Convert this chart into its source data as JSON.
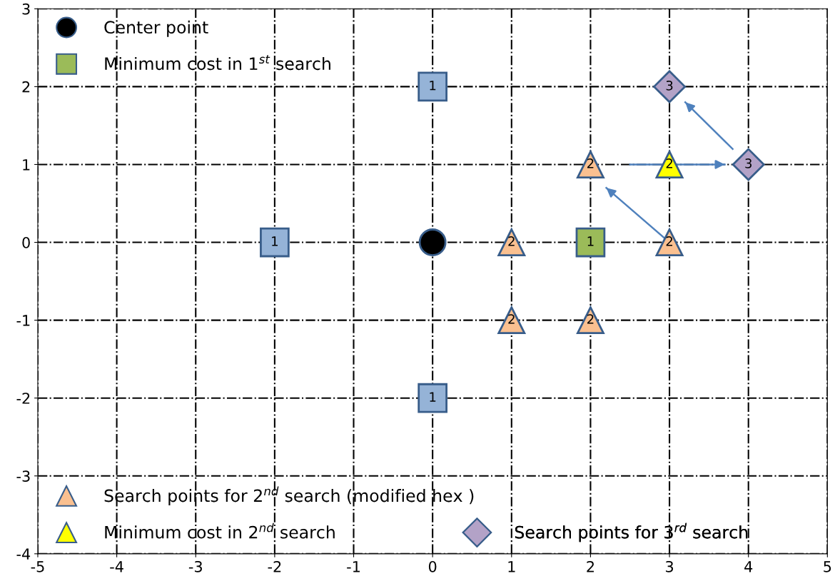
{
  "chart_data": {
    "type": "scatter",
    "xlim": [
      -5,
      5
    ],
    "ylim": [
      -4,
      3
    ],
    "xticks": [
      -5,
      -4,
      -3,
      -2,
      -1,
      0,
      1,
      2,
      3,
      4,
      5
    ],
    "yticks": [
      -4,
      -3,
      -2,
      -1,
      0,
      1,
      2,
      3
    ],
    "grid": true,
    "legend": "left",
    "series": [
      {
        "name": "Center point",
        "color": "#000000",
        "marker": "circle",
        "x": [
          0
        ],
        "values": [
          0
        ]
      },
      {
        "color": "#95b3d7",
        "marker": "square",
        "x": [
          0,
          -2,
          0
        ],
        "values": [
          2,
          0,
          -2
        ]
      },
      {
        "name": "Minimum cost in 1$^{st}$ search",
        "color": "#9bbb59",
        "marker": "square",
        "x": [
          2
        ],
        "values": [
          0
        ]
      },
      {
        "name": "Search points for 2$^{nd}$ search (modified hex )",
        "color": "#fac090",
        "marker": "triangle",
        "x": [
          2,
          1,
          3,
          1,
          2
        ],
        "values": [
          1,
          0,
          0,
          -1,
          -1
        ]
      },
      {
        "name": "Minimum cost in 2$^{nd}$ search",
        "color": "#ffff00",
        "marker": "triangle",
        "x": [
          3
        ],
        "values": [
          1
        ]
      },
      {
        "name": "Search points for 3$^{rd}$ search",
        "color": "#b3a2c7",
        "marker": "diamond",
        "x": [
          3,
          4
        ],
        "values": [
          2,
          1
        ]
      },
      {
        "type": "line",
        "color": "#4f81bd",
        "x": [
          3,
          2.2
        ],
        "values": [
          0,
          0.7
        ]
      },
      {
        "type": "line",
        "color": "#4f81bd",
        "x": [
          2.5,
          3.7
        ],
        "values": [
          1,
          1
        ]
      },
      {
        "type": "line",
        "color": "#4f81bd",
        "x": [
          3.8,
          3.2
        ],
        "values": [
          1.2,
          1.8
        ]
      }
    ],
    "annotations": [
      {
        "text": "1",
        "x": 0,
        "y": 2
      },
      {
        "text": "1",
        "x": -2,
        "y": 0
      },
      {
        "text": "1",
        "x": 0,
        "y": -2
      },
      {
        "text": "1",
        "x": 2,
        "y": 0
      },
      {
        "text": "2",
        "x": 2,
        "y": 1
      },
      {
        "text": "2",
        "x": 1,
        "y": 0
      },
      {
        "text": "2",
        "x": 3,
        "y": 0
      },
      {
        "text": "2",
        "x": 1,
        "y": -1
      },
      {
        "text": "2",
        "x": 2,
        "y": -1
      },
      {
        "text": "2",
        "x": 3,
        "y": 1
      },
      {
        "text": "3",
        "x": 3,
        "y": 2
      },
      {
        "text": "3",
        "x": 4,
        "y": 1
      }
    ]
  }
}
